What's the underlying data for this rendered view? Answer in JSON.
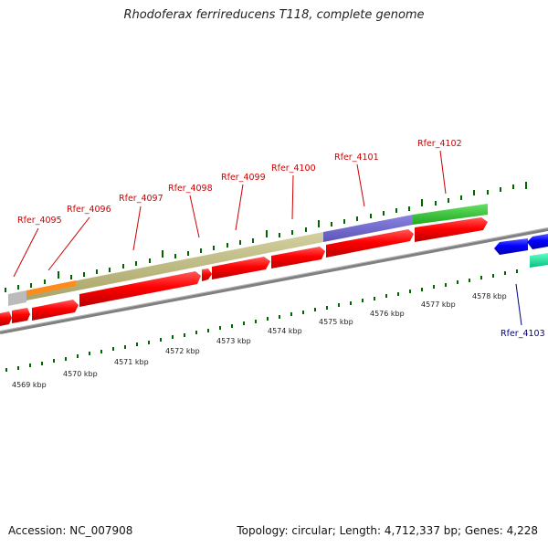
{
  "title": "Rhodoferax ferrireducens T118, complete genome",
  "accession": "Accession: NC_007908",
  "summary": "Topology: circular; Length: 4,712,337 bp; Genes: 4,228",
  "colors": {
    "forward_cds": "#ff0000",
    "reverse_cds": "#0000ff",
    "label_forward": "#cc0000",
    "label_reverse": "#00008b",
    "tick": "#006600",
    "backbone": "#808080"
  },
  "scale_labels": [
    "4569 kbp",
    "4570 kbp",
    "4571 kbp",
    "4572 kbp",
    "4573 kbp",
    "4574 kbp",
    "4575 kbp",
    "4576 kbp",
    "4577 kbp",
    "4578 kbp"
  ],
  "gene_labels": [
    {
      "text": "Rfer_4095",
      "strand": "forward"
    },
    {
      "text": "Rfer_4096",
      "strand": "forward"
    },
    {
      "text": "Rfer_4097",
      "strand": "forward"
    },
    {
      "text": "Rfer_4098",
      "strand": "forward"
    },
    {
      "text": "Rfer_4099",
      "strand": "forward"
    },
    {
      "text": "Rfer_4100",
      "strand": "forward"
    },
    {
      "text": "Rfer_4101",
      "strand": "forward"
    },
    {
      "text": "Rfer_4102",
      "strand": "forward"
    },
    {
      "text": "Rfer_4103",
      "strand": "reverse"
    }
  ]
}
